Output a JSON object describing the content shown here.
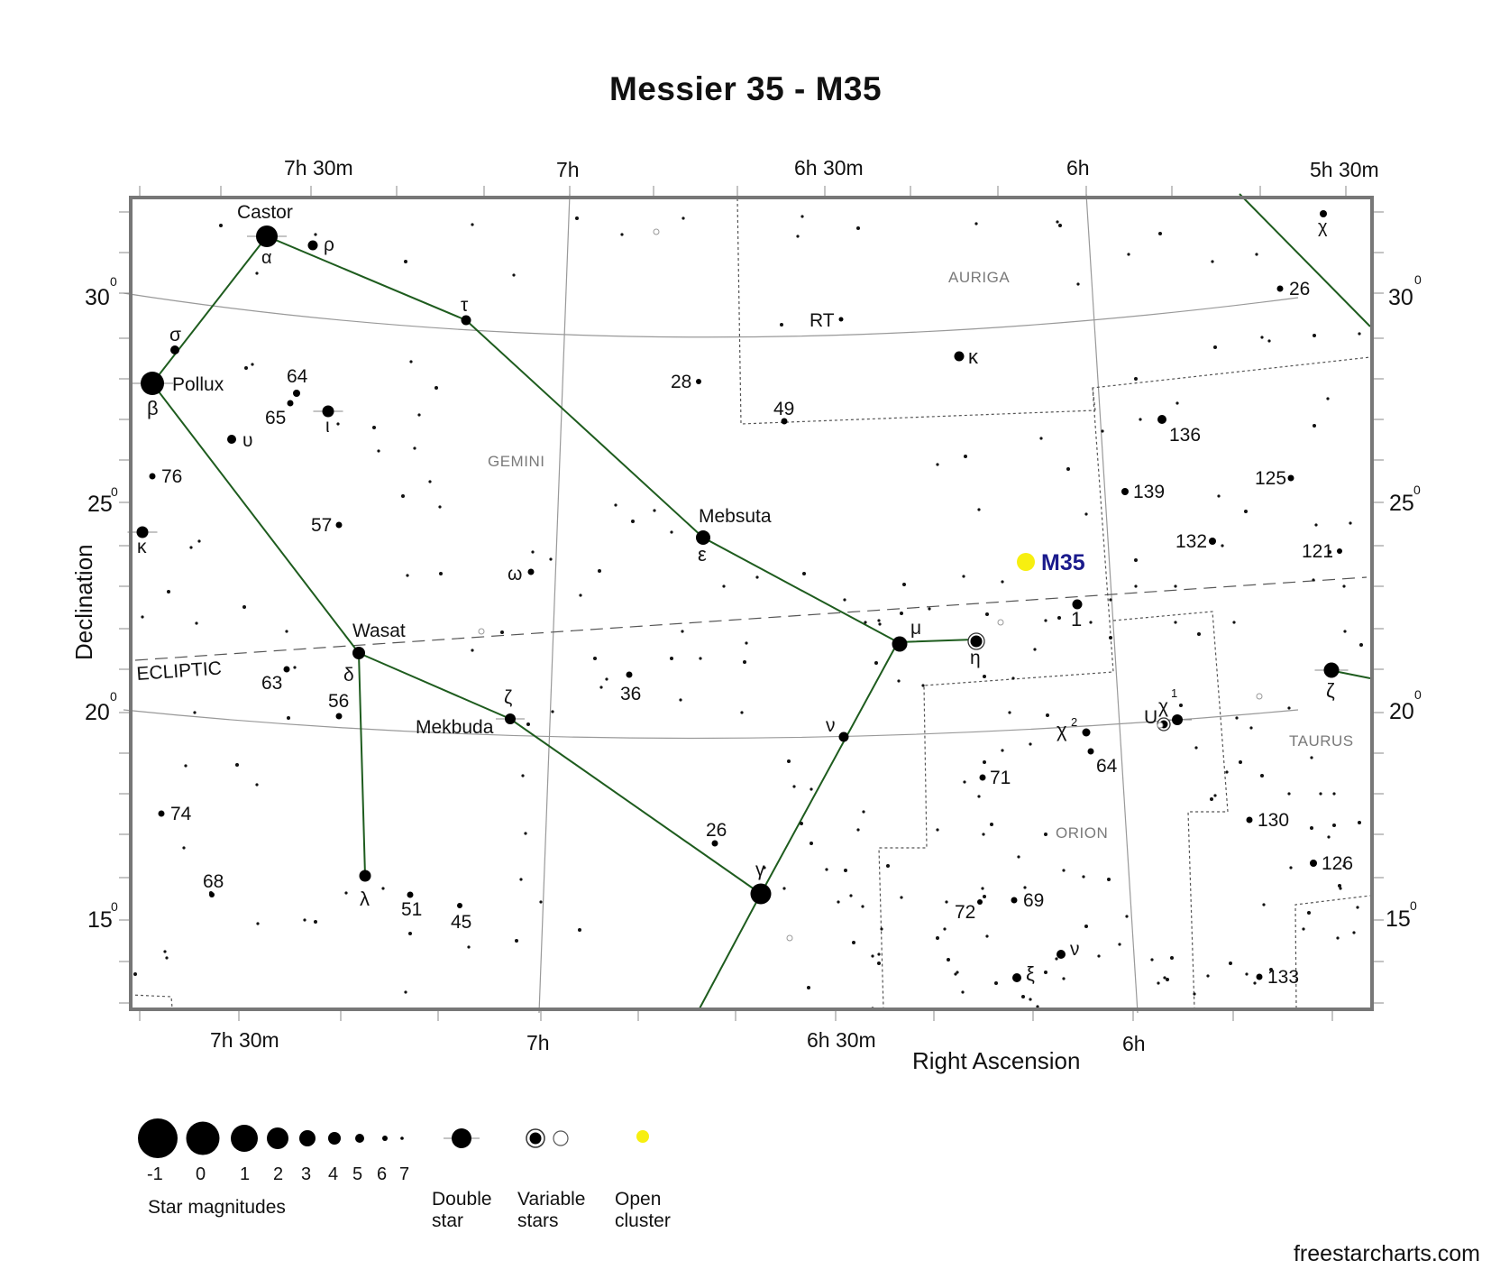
{
  "title": "Messier 35 - M35",
  "axes": {
    "x_label": "Right Ascension",
    "y_label": "Declination",
    "ra_ticks_top": [
      "7h 30m",
      "7h",
      "6h 30m",
      "6h",
      "5h 30m"
    ],
    "ra_ticks_bottom": [
      "7h 30m",
      "7h",
      "6h 30m",
      "6h"
    ],
    "dec_ticks": [
      {
        "value": "30",
        "sup": "0"
      },
      {
        "value": "25",
        "sup": "0"
      },
      {
        "value": "20",
        "sup": "0"
      },
      {
        "value": "15",
        "sup": "0"
      }
    ]
  },
  "ecliptic_label": "ECLIPTIC",
  "constellations": [
    "AURIGA",
    "GEMINI",
    "TAURUS",
    "ORION"
  ],
  "target": {
    "name": "M35",
    "color": "#f7ef10",
    "label_color": "#1a1a8c"
  },
  "line_color": "#1e5c1e",
  "star_labels": [
    "Castor",
    "α",
    "ρ",
    "σ",
    "Pollux",
    "β",
    "τ",
    "64",
    "65",
    "ι",
    "υ",
    "76",
    "κ",
    "57",
    "ω",
    "Mebsuta",
    "ε",
    "28",
    "49",
    "RT",
    "κ",
    "μ",
    "η",
    "Wasat",
    "δ",
    "63",
    "56",
    "ζ",
    "Mekbuda",
    "36",
    "ν",
    "γ",
    "26",
    "74",
    "68",
    "λ",
    "51",
    "45",
    "1",
    "χ",
    "2",
    "χ",
    "1",
    "U",
    "64",
    "71",
    "69",
    "72",
    "ν",
    "ξ",
    "136",
    "139",
    "125",
    "132",
    "121",
    "26",
    "χ",
    "ζ",
    "130",
    "126",
    "133"
  ],
  "legend": {
    "magnitudes": [
      "-1",
      "0",
      "1",
      "2",
      "3",
      "4",
      "5",
      "6",
      "7"
    ],
    "magnitudes_caption": "Star magnitudes",
    "double_star": [
      "Double",
      "star"
    ],
    "variable_stars": [
      "Variable",
      "stars"
    ],
    "open_cluster": [
      "Open",
      "cluster"
    ]
  },
  "credit": "freestarcharts.com"
}
